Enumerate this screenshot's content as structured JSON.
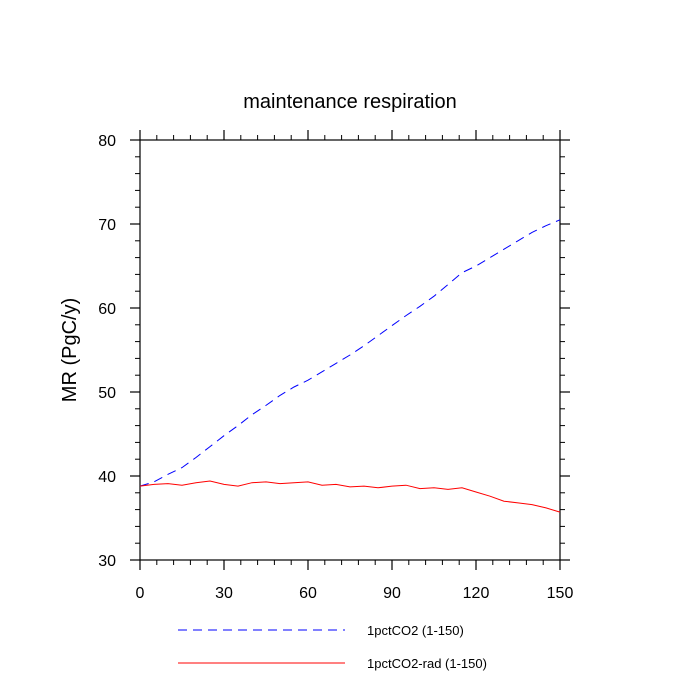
{
  "chart_data": {
    "type": "line",
    "title": "maintenance respiration",
    "xlabel": "",
    "ylabel": "MR  (PgC/y)",
    "xlim": [
      0,
      150
    ],
    "ylim": [
      30,
      80
    ],
    "xticks": [
      0,
      30,
      60,
      90,
      120,
      150
    ],
    "yticks": [
      30,
      40,
      50,
      60,
      70,
      80
    ],
    "grid": false,
    "legend_position": "bottom",
    "series": [
      {
        "name": "1pctCO2 (1-150)",
        "color": "#0000ff",
        "dash": "dashed",
        "x": [
          0,
          5,
          10,
          15,
          20,
          25,
          30,
          35,
          40,
          45,
          50,
          55,
          60,
          65,
          70,
          75,
          80,
          85,
          90,
          95,
          100,
          105,
          110,
          115,
          120,
          125,
          130,
          135,
          140,
          145,
          150
        ],
        "y": [
          38.8,
          39.3,
          40.2,
          41.0,
          42.2,
          43.5,
          44.8,
          46.0,
          47.3,
          48.4,
          49.6,
          50.6,
          51.4,
          52.4,
          53.4,
          54.4,
          55.5,
          56.7,
          57.9,
          59.1,
          60.2,
          61.4,
          62.8,
          64.2,
          65.0,
          66.0,
          67.0,
          68.0,
          69.0,
          69.8,
          70.5
        ]
      },
      {
        "name": "1pctCO2-rad (1-150)",
        "color": "#ff0000",
        "dash": "solid",
        "x": [
          0,
          5,
          10,
          15,
          20,
          25,
          30,
          35,
          40,
          45,
          50,
          55,
          60,
          65,
          70,
          75,
          80,
          85,
          90,
          95,
          100,
          105,
          110,
          115,
          120,
          125,
          130,
          135,
          140,
          145,
          150
        ],
        "y": [
          38.8,
          39.0,
          39.1,
          38.9,
          39.2,
          39.4,
          39.0,
          38.8,
          39.2,
          39.3,
          39.1,
          39.2,
          39.3,
          38.9,
          39.0,
          38.7,
          38.8,
          38.6,
          38.8,
          38.9,
          38.5,
          38.6,
          38.4,
          38.6,
          38.1,
          37.6,
          37.0,
          36.8,
          36.6,
          36.2,
          35.7
        ]
      }
    ]
  }
}
